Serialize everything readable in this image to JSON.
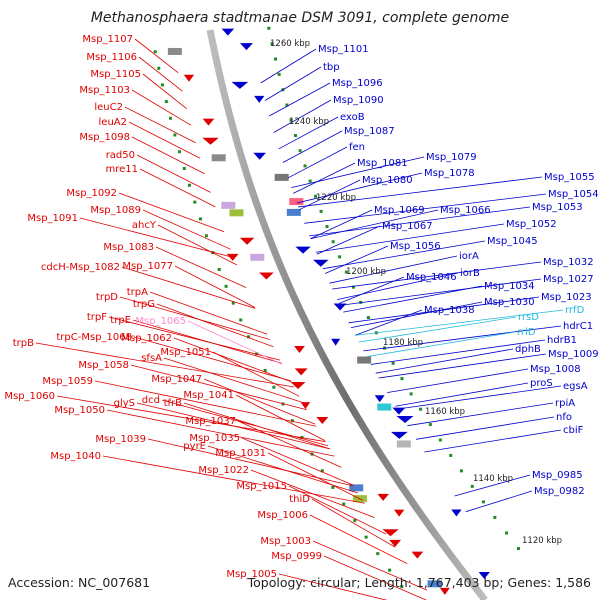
{
  "title": "Methanosphaera stadtmanae DSM 3091, complete genome",
  "accession": "Accession: NC_007681",
  "topology": "Topology: circular; Length: 1,767,403 bp; Genes: 1,586",
  "colors": {
    "minus_strand": "#e00000",
    "plus_strand": "#0000cc",
    "rna": "#22bbdd",
    "pseudo": "#ff88cc",
    "backbone": "#888888",
    "tick": "#228B22"
  },
  "ticks": [
    "1260 kbp",
    "1240 kbp",
    "1220 kbp",
    "1200 kbp",
    "1180 kbp",
    "1160 kbp",
    "1140 kbp",
    "1120 kbp"
  ],
  "labels_left": [
    "Msp_1107",
    "Msp_1106",
    "Msp_1105",
    "Msp_1103",
    "leuC2",
    "leuA2",
    "Msp_1098",
    "rad50",
    "mre11",
    "Msp_1092",
    "Msp_1089",
    "Msp_1091",
    "ahcY",
    "Msp_1083",
    "cdcH-Msp_1082",
    "Msp_1077",
    "trpD",
    "trpA",
    "trpG",
    "trpF",
    "trpE",
    "Msp_1065",
    "trpB",
    "trpC-Msp_1068",
    "Msp_1062",
    "Msp_1051",
    "Msp_1058",
    "sfsA",
    "Msp_1059",
    "Msp_1060",
    "Msp_1047",
    "Msp_1050",
    "glyS",
    "dcd",
    "tfrB",
    "Msp_1041",
    "Msp_1037",
    "Msp_1039",
    "Msp_1035",
    "pyrE",
    "Msp_1040",
    "Msp_1031",
    "Msp_1022",
    "Msp_1015",
    "thiD",
    "Msp_1006",
    "Msp_1003",
    "Msp_0999",
    "Msp_1005"
  ],
  "labels_right": [
    "Msp_1101",
    "tbp",
    "Msp_1096",
    "Msp_1090",
    "exoB",
    "Msp_1087",
    "fen",
    "Msp_1081",
    "Msp_1079",
    "Msp_1080",
    "Msp_1078",
    "Msp_1055",
    "Msp_1054",
    "Msp_1069",
    "Msp_1066",
    "Msp_1053",
    "Msp_1067",
    "Msp_1052",
    "Msp_1056",
    "Msp_1045",
    "iorA",
    "Msp_1032",
    "Msp_1046",
    "iorB",
    "Msp_1027",
    "Msp_1034",
    "Msp_1023",
    "Msp_1038",
    "Msp_1030",
    "rrfD",
    "rrsD",
    "hdrC1",
    "rrlD",
    "hdrB1",
    "dphB",
    "Msp_1009",
    "Msp_1008",
    "proS",
    "egsA",
    "rpiA",
    "nfo",
    "cbiF",
    "Msp_0985",
    "Msp_0982"
  ]
}
